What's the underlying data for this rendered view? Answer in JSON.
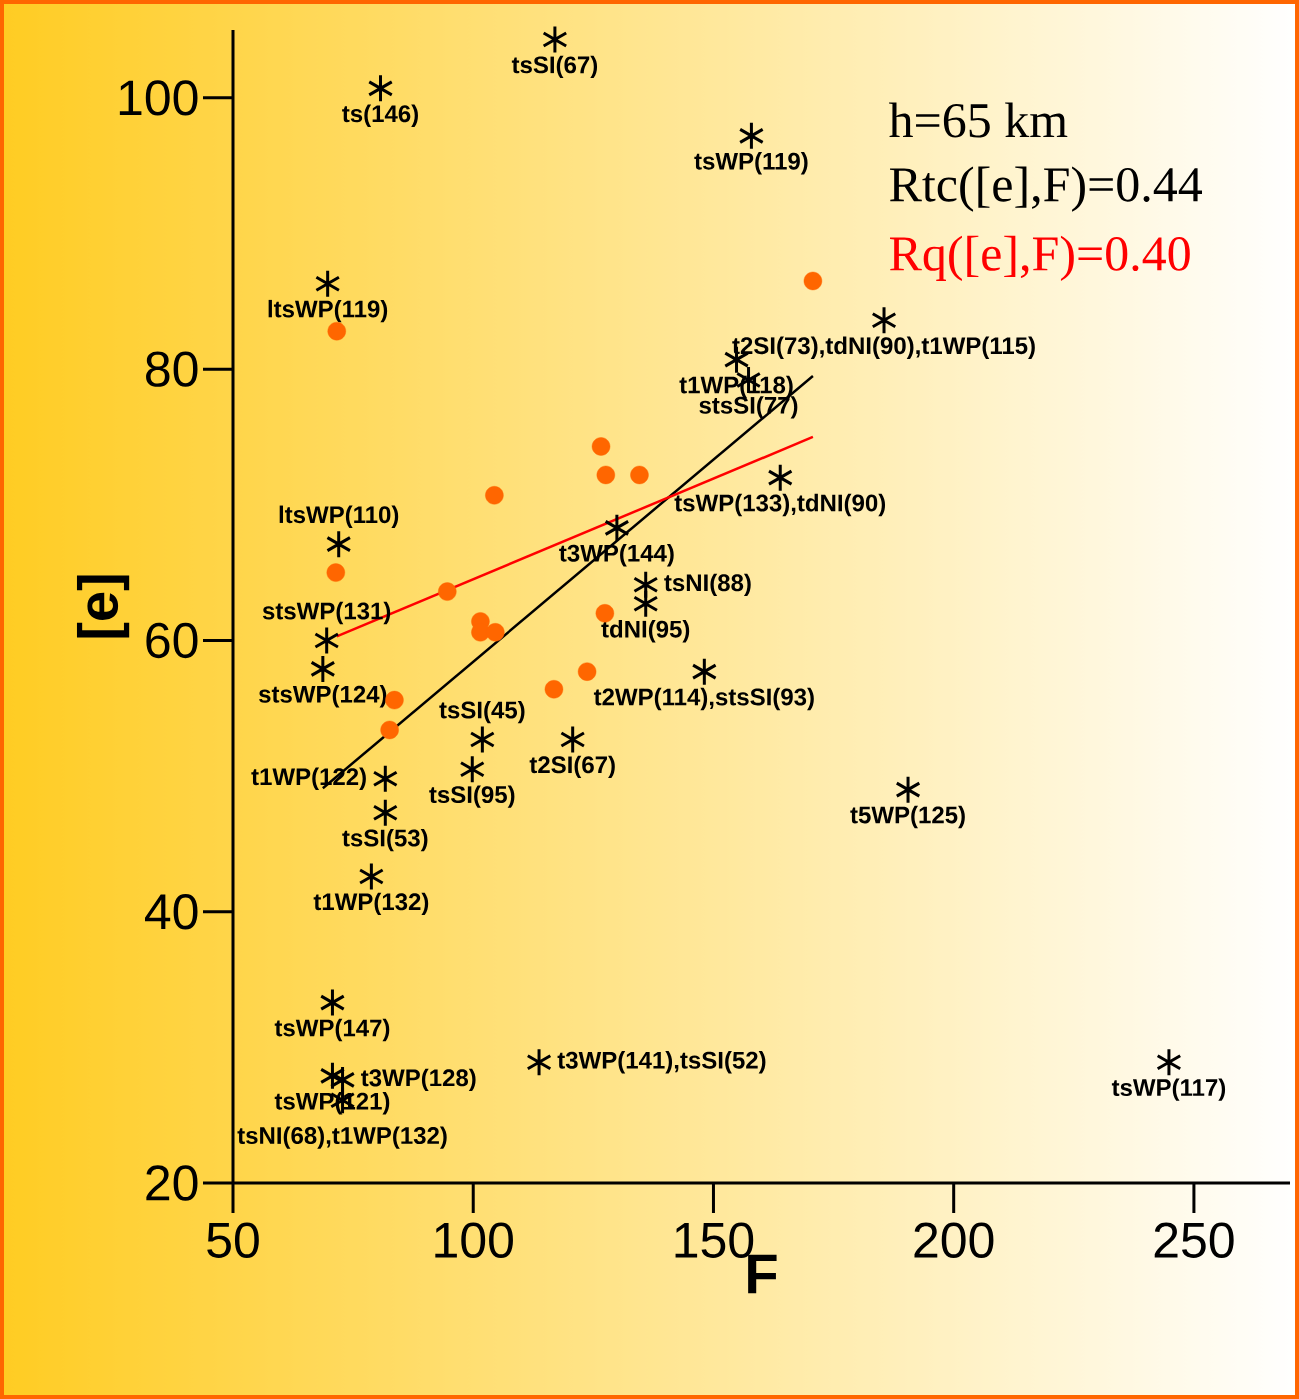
{
  "chart_data": {
    "type": "scatter",
    "xlabel": "F",
    "ylabel": "[e]",
    "xlim": [
      50,
      270
    ],
    "ylim": [
      20,
      105
    ],
    "xticks": [
      50,
      100,
      150,
      200,
      250
    ],
    "yticks": [
      20,
      40,
      60,
      80,
      100
    ],
    "annotations": [
      "h=65 km",
      {
        "text": "ts(146)",
        "x": 80.7,
        "y": 100.7
      },
      {
        "text": "tsSI(67)",
        "x": 117.0,
        "y": 104.3
      },
      {
        "text": "tsWP(119)",
        "x": 157.9,
        "y": 97.2
      },
      {
        "text": "ltsWP(119)",
        "x": 69.7,
        "y": 86.3
      },
      {
        "text": "t2SI(73),tdNI(90),t1WP(115)",
        "x": 185.5,
        "y": 83.6
      },
      {
        "text": "t1WP(118)",
        "x": 154.8,
        "y": 80.7
      },
      {
        "text": "stsSI(77)",
        "x": 157.3,
        "y": 79.2
      },
      {
        "text": "tsWP(133),tdNI(90)",
        "x": 163.9,
        "y": 72.0
      },
      {
        "text": "t3WP(144)",
        "x": 129.9,
        "y": 68.3
      },
      {
        "text": "ltsWP(110)",
        "x": 72.0,
        "y": 67.1
      },
      {
        "text": "tsNI(88)",
        "x": 135.9,
        "y": 64.1
      },
      {
        "text": "tdNI(95)",
        "x": 135.9,
        "y": 62.7
      },
      {
        "text": "t2WP(114),stsSI(93)",
        "x": 148.1,
        "y": 57.7
      },
      {
        "text": "stsWP(131)",
        "x": 69.5,
        "y": 60.0
      },
      {
        "text": "stsWP(124)",
        "x": 68.7,
        "y": 57.9
      },
      {
        "text": "tsSI(45)",
        "x": 101.9,
        "y": 52.7
      },
      {
        "text": "t2SI(67)",
        "x": 120.7,
        "y": 52.7
      },
      {
        "text": "tsSI(95)",
        "x": 99.8,
        "y": 50.5
      },
      {
        "text": "t1WP(122)",
        "x": 81.7,
        "y": 49.8
      },
      {
        "text": "tsSI(53)",
        "x": 81.7,
        "y": 47.3
      },
      {
        "text": "t1WP(132)",
        "x": 78.8,
        "y": 42.6
      },
      {
        "text": "tsWP(147)",
        "x": 70.7,
        "y": 33.3
      },
      {
        "text": "tsWP(121)",
        "x": 70.7,
        "y": 27.9
      },
      {
        "text": "t3WP(128)",
        "x": 72.8,
        "y": 27.6
      },
      {
        "text": "tsNI(68),t1WP(132)",
        "x": 72.8,
        "y": 26.1
      },
      {
        "text": "t3WP(141),tsSI(52)",
        "x": 113.7,
        "y": 28.9
      },
      {
        "text": "t5WP(125)",
        "x": 190.5,
        "y": 49.0
      },
      {
        "text": "tsWP(117)",
        "x": 244.8,
        "y": 28.9
      }
    ],
    "series": [
      {
        "marker": "cross",
        "color": "#000000",
        "x": [
          80.7,
          117.0,
          157.9,
          69.7,
          185.5,
          154.8,
          157.3,
          163.9,
          129.9,
          72.0,
          135.9,
          135.9,
          148.1,
          69.5,
          68.7,
          101.9,
          120.7,
          99.8,
          81.7,
          81.7,
          78.8,
          70.7,
          70.7,
          72.8,
          72.8,
          113.7,
          190.5,
          244.8
        ],
        "values": [
          100.7,
          104.3,
          97.2,
          86.3,
          83.6,
          80.7,
          79.2,
          72.0,
          68.3,
          67.1,
          64.1,
          62.7,
          57.7,
          60.0,
          57.9,
          52.7,
          52.7,
          50.5,
          49.8,
          47.3,
          42.6,
          33.3,
          27.9,
          27.6,
          26.1,
          28.9,
          49.0,
          28.9
        ]
      },
      {
        "marker": "circle",
        "color": "#ff6600",
        "x": [
          71.6,
          71.4,
          94.6,
          104.4,
          101.5,
          101.5,
          104.6,
          83.6,
          82.6,
          116.8,
          123.7,
          126.6,
          127.6,
          134.6,
          127.4,
          170.7
        ],
        "values": [
          82.8,
          65.0,
          63.6,
          70.7,
          61.4,
          60.6,
          60.6,
          55.6,
          53.4,
          56.4,
          57.7,
          74.3,
          72.2,
          72.2,
          62.0,
          86.5
        ]
      },
      {
        "type": "line",
        "name": "Rtc([e],F)=0.44",
        "color": "#000000",
        "x": [
          68.7,
          170.7
        ],
        "values": [
          49.1,
          79.5
        ]
      },
      {
        "type": "line",
        "name": "Rq([e],F)=0.40",
        "color": "#ff0000",
        "x": [
          71.6,
          170.7
        ],
        "values": [
          60.3,
          75.0
        ]
      }
    ]
  }
}
